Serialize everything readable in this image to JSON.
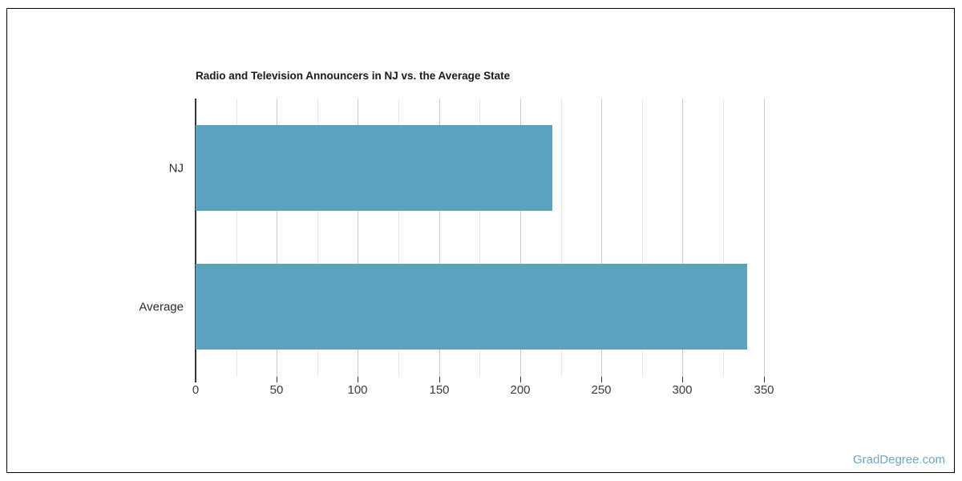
{
  "frame": {
    "background": "#ffffff",
    "border_color": "#000000"
  },
  "chart": {
    "title": "Radio and Television Announcers in NJ vs. the Average State",
    "title_color": "#1a1a1a",
    "bar_color": "#5aa2be",
    "axis_color": "#333333",
    "major_grid_color": "#c9c9c9",
    "minor_grid_color": "#e8e8e8",
    "tick_color": "#333333",
    "tick_label_color": "#3c3c3c",
    "category_label_color": "#2b2b2b"
  },
  "watermark": {
    "label": "GradDegree.com",
    "color": "#6ea7c4"
  },
  "chart_data": {
    "type": "bar",
    "orientation": "horizontal",
    "title": "Radio and Television Announcers in NJ vs. the Average State",
    "categories": [
      "NJ",
      "Average"
    ],
    "values": [
      220,
      340
    ],
    "xlabel": "",
    "ylabel": "",
    "xlim": [
      0,
      366
    ],
    "xticks": [
      0,
      50,
      100,
      150,
      200,
      250,
      300,
      350
    ],
    "minor_grid_step": 25,
    "grid": true,
    "legend": false
  }
}
